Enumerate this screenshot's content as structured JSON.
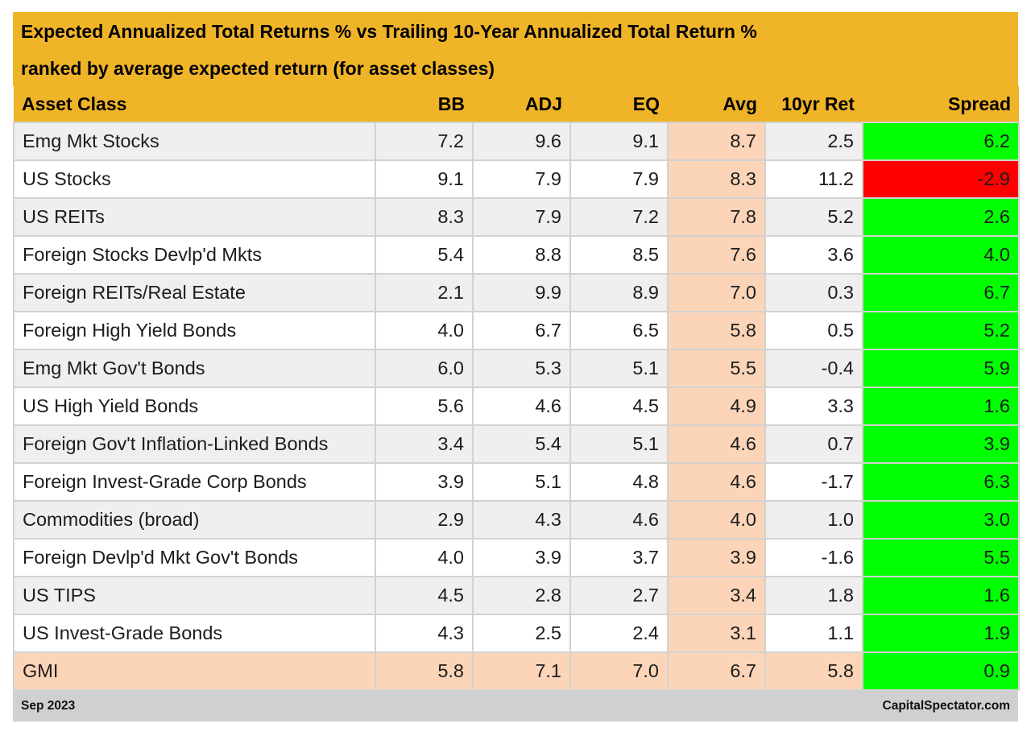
{
  "chart_data": {
    "type": "table",
    "title": "Expected Annualized Total Returns % vs Trailing 10-Year Annualized Total Return %",
    "subtitle": "ranked by average expected return (for asset classes)",
    "columns": [
      "Asset Class",
      "BB",
      "ADJ",
      "EQ",
      "Avg",
      "10yr Ret",
      "Spread"
    ],
    "rows": [
      {
        "asset": "Emg Mkt Stocks",
        "bb": "7.2",
        "adj": "9.6",
        "eq": "9.1",
        "avg": "8.7",
        "ret10": "2.5",
        "spread": "6.2"
      },
      {
        "asset": "US Stocks",
        "bb": "9.1",
        "adj": "7.9",
        "eq": "7.9",
        "avg": "8.3",
        "ret10": "11.2",
        "spread": "-2.9"
      },
      {
        "asset": "US REITs",
        "bb": "8.3",
        "adj": "7.9",
        "eq": "7.2",
        "avg": "7.8",
        "ret10": "5.2",
        "spread": "2.6"
      },
      {
        "asset": "Foreign Stocks Devlp'd Mkts",
        "bb": "5.4",
        "adj": "8.8",
        "eq": "8.5",
        "avg": "7.6",
        "ret10": "3.6",
        "spread": "4.0"
      },
      {
        "asset": "Foreign REITs/Real Estate",
        "bb": "2.1",
        "adj": "9.9",
        "eq": "8.9",
        "avg": "7.0",
        "ret10": "0.3",
        "spread": "6.7"
      },
      {
        "asset": "Foreign High Yield Bonds",
        "bb": "4.0",
        "adj": "6.7",
        "eq": "6.5",
        "avg": "5.8",
        "ret10": "0.5",
        "spread": "5.2"
      },
      {
        "asset": "Emg Mkt Gov't Bonds",
        "bb": "6.0",
        "adj": "5.3",
        "eq": "5.1",
        "avg": "5.5",
        "ret10": "-0.4",
        "spread": "5.9"
      },
      {
        "asset": "US High Yield Bonds",
        "bb": "5.6",
        "adj": "4.6",
        "eq": "4.5",
        "avg": "4.9",
        "ret10": "3.3",
        "spread": "1.6"
      },
      {
        "asset": "Foreign Gov't Inflation-Linked Bonds",
        "bb": "3.4",
        "adj": "5.4",
        "eq": "5.1",
        "avg": "4.6",
        "ret10": "0.7",
        "spread": "3.9"
      },
      {
        "asset": "Foreign Invest-Grade Corp Bonds",
        "bb": "3.9",
        "adj": "5.1",
        "eq": "4.8",
        "avg": "4.6",
        "ret10": "-1.7",
        "spread": "6.3"
      },
      {
        "asset": "Commodities (broad)",
        "bb": "2.9",
        "adj": "4.3",
        "eq": "4.6",
        "avg": "4.0",
        "ret10": "1.0",
        "spread": "3.0"
      },
      {
        "asset": "Foreign Devlp'd Mkt Gov't Bonds",
        "bb": "4.0",
        "adj": "3.9",
        "eq": "3.7",
        "avg": "3.9",
        "ret10": "-1.6",
        "spread": "5.5"
      },
      {
        "asset": "US TIPS",
        "bb": "4.5",
        "adj": "2.8",
        "eq": "2.7",
        "avg": "3.4",
        "ret10": "1.8",
        "spread": "1.6"
      },
      {
        "asset": "US Invest-Grade Bonds",
        "bb": "4.3",
        "adj": "2.5",
        "eq": "2.4",
        "avg": "3.1",
        "ret10": "1.1",
        "spread": "1.9"
      },
      {
        "asset": "GMI",
        "bb": "5.8",
        "adj": "7.1",
        "eq": "7.0",
        "avg": "6.7",
        "ret10": "5.8",
        "spread": "0.9"
      }
    ],
    "highlight_row": "GMI",
    "colors": {
      "header": "#f0b428",
      "avg_column": "#fcd5b8",
      "gmi_row": "#fcd5b8",
      "spread_positive": "#00ff00",
      "spread_negative": "#ff0000",
      "row_alt": "#efefef",
      "footer": "#d0d0d0"
    }
  },
  "footer": {
    "date": "Sep 2023",
    "source": "CapitalSpectator.com"
  }
}
